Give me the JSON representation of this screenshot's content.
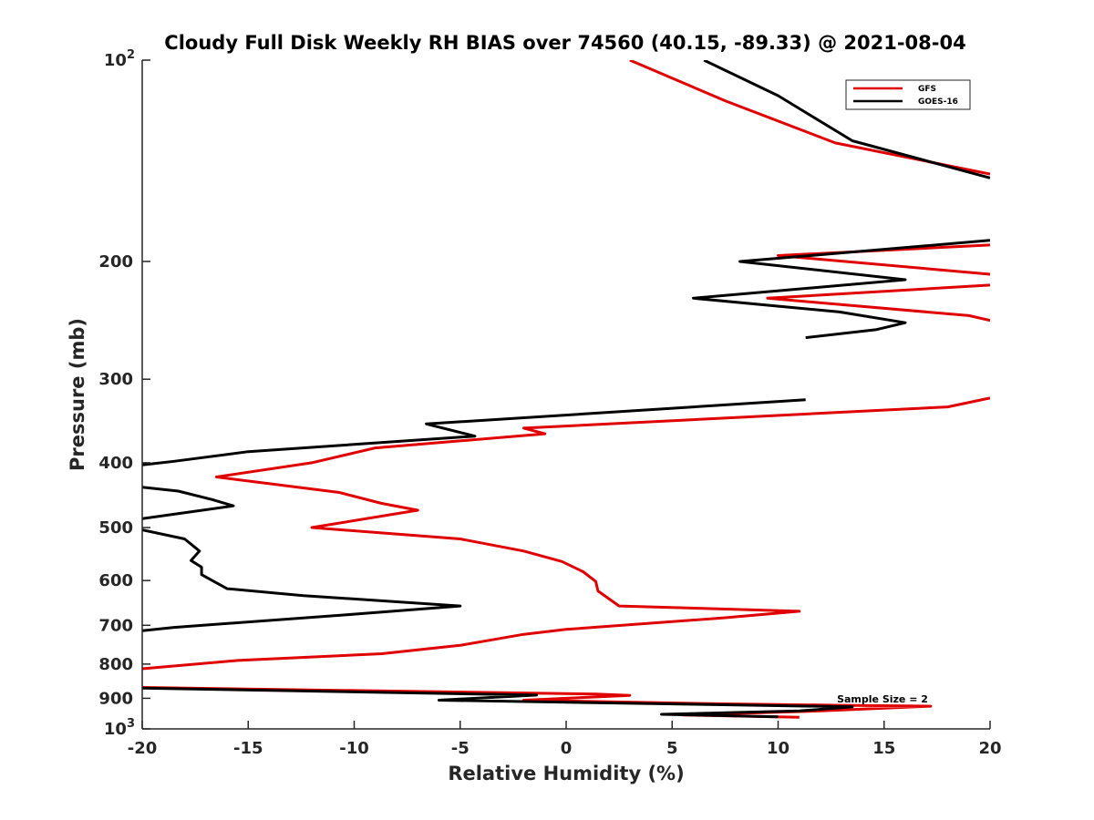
{
  "chart_data": {
    "type": "line",
    "title": "Cloudy Full Disk Weekly RH BIAS over 74560 (40.15, -89.33) @ 2021-08-04",
    "xlabel": "Relative Humidity (%)",
    "ylabel": "Pressure (mb)",
    "xlim": [
      -20,
      20
    ],
    "ylim": [
      100,
      1000
    ],
    "y_scale": "log",
    "y_reversed": true,
    "x_ticks": [
      -20,
      -15,
      -10,
      -5,
      0,
      5,
      10,
      15,
      20
    ],
    "x_tick_labels": [
      "-20",
      "-15",
      "-10",
      "-5",
      "0",
      "5",
      "10",
      "15",
      "20"
    ],
    "y_ticks": [
      {
        "value": 100,
        "base": "10",
        "exp": "2"
      },
      {
        "value": 200,
        "label": "200"
      },
      {
        "value": 300,
        "label": "300"
      },
      {
        "value": 400,
        "label": "400"
      },
      {
        "value": 500,
        "label": "500"
      },
      {
        "value": 600,
        "label": "600"
      },
      {
        "value": 700,
        "label": "700"
      },
      {
        "value": 800,
        "label": "800"
      },
      {
        "value": 900,
        "label": "900"
      },
      {
        "value": 1000,
        "base": "10",
        "exp": "3"
      }
    ],
    "legend_position": "top-right",
    "grid": false,
    "annotation": "Sample Size = 2",
    "series": [
      {
        "name": "GFS",
        "color": "#e00000",
        "points": [
          [
            3,
            100
          ],
          [
            7.5,
            115
          ],
          [
            12.7,
            133
          ],
          [
            20,
            148
          ],
          [
            null,
            null
          ],
          [
            20,
            189
          ],
          [
            10,
            196
          ],
          [
            20,
            209
          ],
          [
            21,
            216
          ],
          [
            9.5,
            227
          ],
          [
            19,
            241
          ],
          [
            20,
            245
          ],
          [
            null,
            null
          ],
          [
            20,
            320
          ],
          [
            18,
            330
          ],
          [
            -2,
            355
          ],
          [
            -1,
            362
          ],
          [
            -9,
            380
          ],
          [
            -12,
            400
          ],
          [
            -16.5,
            420
          ],
          [
            -10.7,
            443
          ],
          [
            -8.7,
            460
          ],
          [
            -7,
            471
          ],
          [
            -12,
            500
          ],
          [
            -5,
            520
          ],
          [
            -2,
            542
          ],
          [
            -0.2,
            562
          ],
          [
            0.8,
            582
          ],
          [
            1.4,
            602
          ],
          [
            1.5,
            622
          ],
          [
            2.5,
            655
          ],
          [
            11,
            667
          ],
          [
            7.5,
            682
          ],
          [
            0,
            710
          ],
          [
            -2,
            722
          ],
          [
            -5,
            750
          ],
          [
            -8.7,
            772
          ],
          [
            -15.5,
            790
          ],
          [
            -20,
            813
          ],
          [
            null,
            null
          ],
          [
            -20,
            867
          ],
          [
            1.4,
            887
          ],
          [
            3,
            891
          ],
          [
            -2,
            906
          ],
          [
            7,
            917
          ],
          [
            13,
            922
          ],
          [
            17.2,
            925
          ],
          [
            12,
            940
          ],
          [
            5.5,
            953
          ],
          [
            11,
            961
          ]
        ]
      },
      {
        "name": "GOES-16",
        "color": "#000000",
        "points": [
          [
            6.5,
            100
          ],
          [
            10,
            113
          ],
          [
            13.5,
            132
          ],
          [
            20,
            150
          ],
          [
            null,
            null
          ],
          [
            20,
            186
          ],
          [
            8.2,
            200
          ],
          [
            16,
            213
          ],
          [
            6,
            227
          ],
          [
            12.9,
            238
          ],
          [
            16,
            247
          ],
          [
            14.6,
            253
          ],
          [
            11.3,
            260
          ],
          [
            null,
            null
          ],
          [
            11.3,
            322
          ],
          [
            -6.6,
            350
          ],
          [
            -4.3,
            365
          ],
          [
            -15,
            385
          ],
          [
            -18.5,
            398
          ],
          [
            -20,
            403
          ],
          [
            null,
            null
          ],
          [
            -20,
            435
          ],
          [
            -18.3,
            441
          ],
          [
            -16.7,
            454
          ],
          [
            -15.7,
            464
          ],
          [
            -20,
            485
          ],
          [
            null,
            null
          ],
          [
            -20,
            504
          ],
          [
            -18,
            520
          ],
          [
            -17.3,
            542
          ],
          [
            -17.7,
            560
          ],
          [
            -17.2,
            573
          ],
          [
            -17.2,
            588
          ],
          [
            -16,
            617
          ],
          [
            -12.4,
            632
          ],
          [
            -5,
            655
          ],
          [
            -9.8,
            673
          ],
          [
            -18.5,
            705
          ],
          [
            -20,
            713
          ],
          [
            null,
            null
          ],
          [
            -20,
            869
          ],
          [
            -1.4,
            890
          ],
          [
            -6,
            906
          ],
          [
            13.5,
            927
          ],
          [
            11,
            940
          ],
          [
            4.5,
            951
          ],
          [
            10,
            959
          ]
        ]
      }
    ]
  }
}
